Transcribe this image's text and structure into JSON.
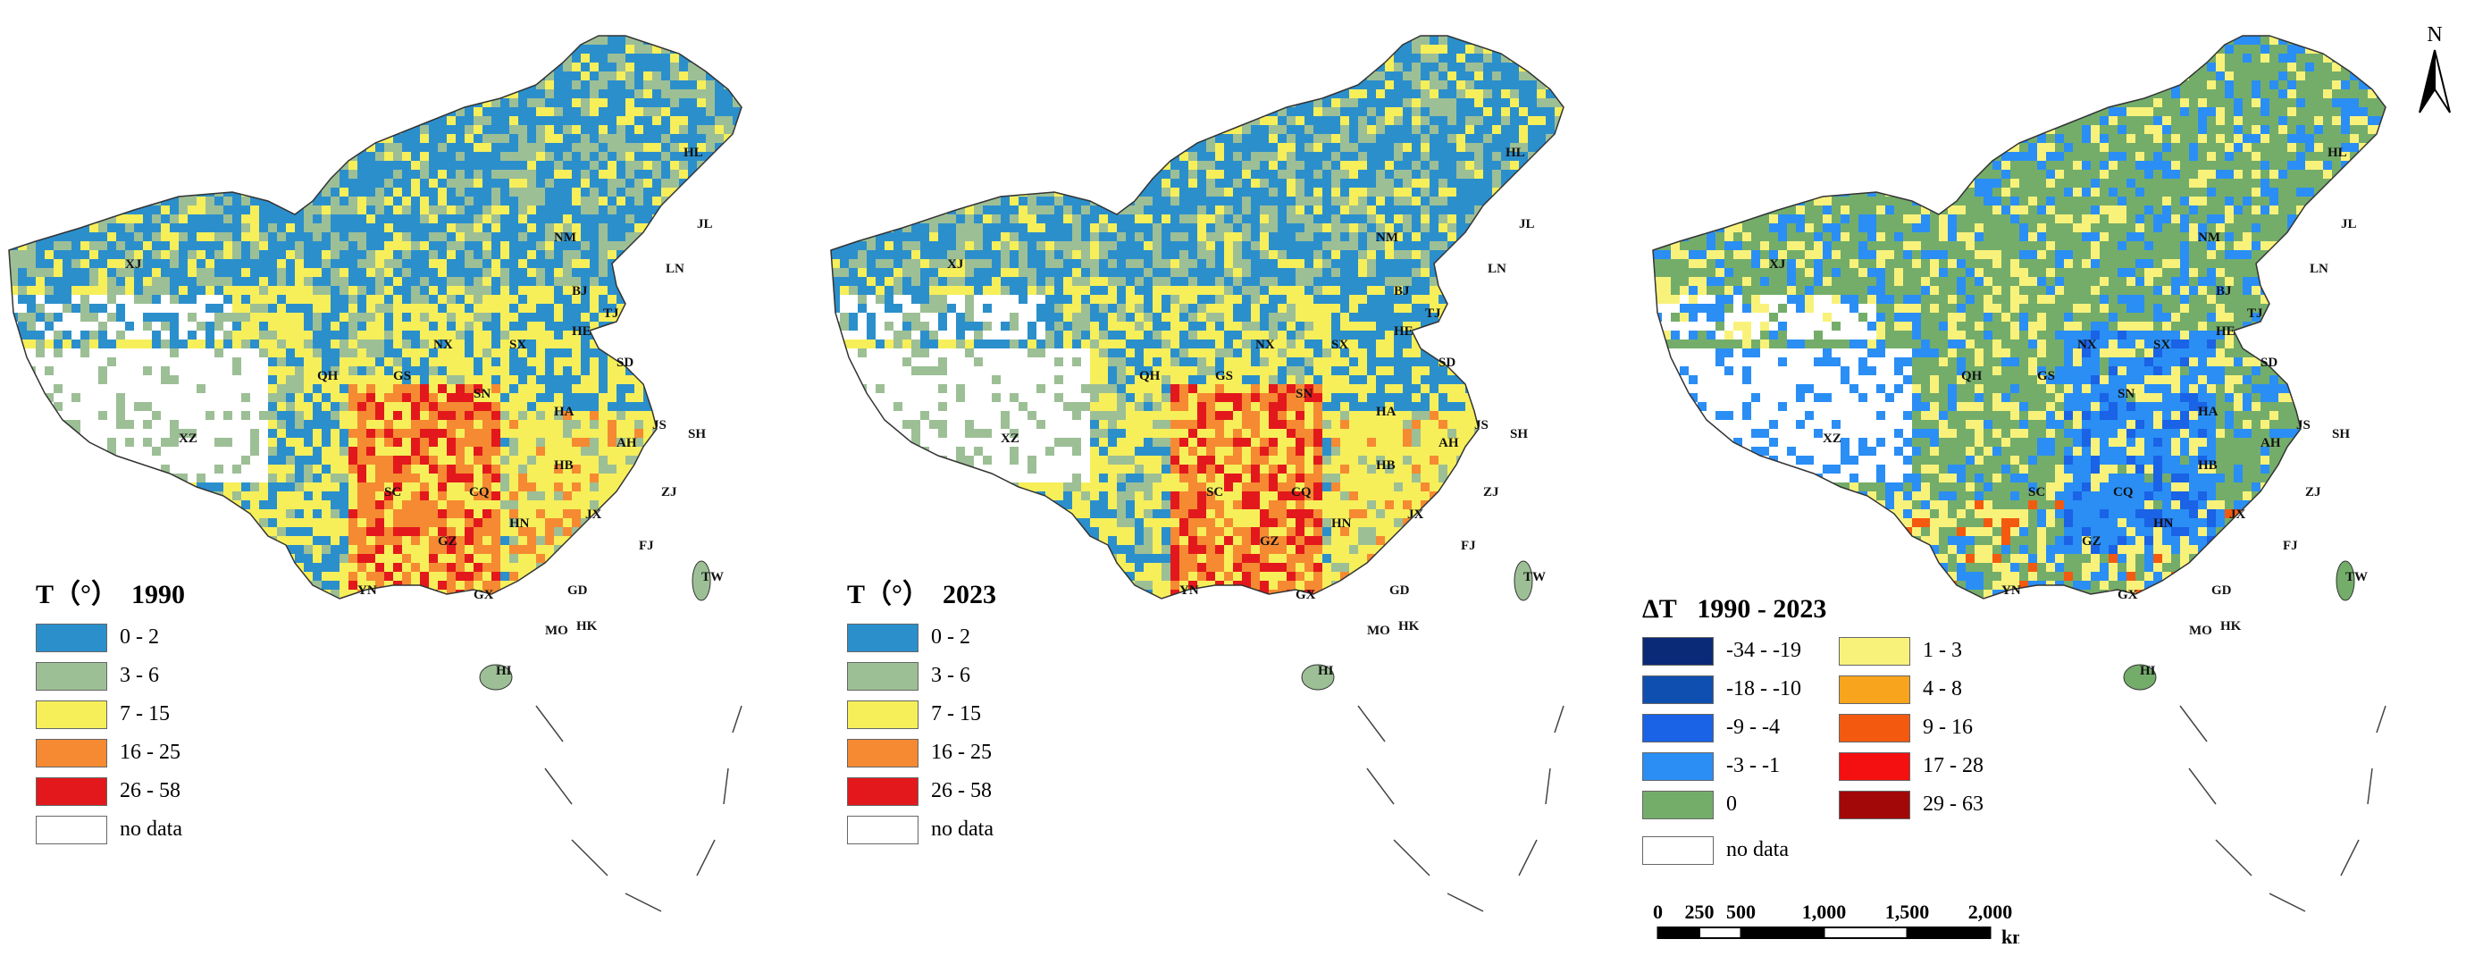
{
  "panels": [
    {
      "id": "1990",
      "legend_symbol": "T（°）",
      "legend_year": "1990",
      "classes": [
        {
          "label": "0 - 2",
          "color": "#2b8fcc"
        },
        {
          "label": "3 - 6",
          "color": "#9dbf96"
        },
        {
          "label": "7 - 15",
          "color": "#f6ef5a"
        },
        {
          "label": "16 - 25",
          "color": "#f58a32"
        },
        {
          "label": "26 - 58",
          "color": "#e3181c"
        },
        {
          "label": "no data",
          "color": "#ffffff"
        }
      ]
    },
    {
      "id": "2023",
      "legend_symbol": "T（°）",
      "legend_year": "2023",
      "classes": [
        {
          "label": "0 - 2",
          "color": "#2b8fcc"
        },
        {
          "label": "3 - 6",
          "color": "#9dbf96"
        },
        {
          "label": "7 - 15",
          "color": "#f6ef5a"
        },
        {
          "label": "16 - 25",
          "color": "#f58a32"
        },
        {
          "label": "26 - 58",
          "color": "#e3181c"
        },
        {
          "label": "no data",
          "color": "#ffffff"
        }
      ]
    }
  ],
  "diff_panel": {
    "legend_symbol": "ΔT",
    "legend_period": "1990 - 2023",
    "classes_left": [
      {
        "label": "-34 - -19",
        "color": "#0a2a78"
      },
      {
        "label": "-18 - -10",
        "color": "#0f4fb0"
      },
      {
        "label": "-9 - -4",
        "color": "#1a62e6"
      },
      {
        "label": "-3 - -1",
        "color": "#2a8ef5"
      },
      {
        "label": "0",
        "color": "#74ad6a"
      }
    ],
    "classes_right": [
      {
        "label": "1 - 3",
        "color": "#f9f27a"
      },
      {
        "label": "4 - 8",
        "color": "#f8a41c"
      },
      {
        "label": "9 - 16",
        "color": "#f35a10"
      },
      {
        "label": "17 - 28",
        "color": "#f40f10"
      },
      {
        "label": "29 - 63",
        "color": "#a30808"
      }
    ],
    "no_data_label": "no data",
    "no_data_color": "#ffffff"
  },
  "province_labels": [
    "HL",
    "JL",
    "LN",
    "NM",
    "XJ",
    "BJ",
    "TJ",
    "HE",
    "SX",
    "SD",
    "NX",
    "GS",
    "QH",
    "XZ",
    "SN",
    "HA",
    "JS",
    "SH",
    "AH",
    "HB",
    "SC",
    "CQ",
    "ZJ",
    "HN",
    "JX",
    "FJ",
    "GZ",
    "YN",
    "GX",
    "GD",
    "TW",
    "MO",
    "HK",
    "HI"
  ],
  "north_arrow": {
    "letter": "N"
  },
  "scale_bar": {
    "ticks": [
      "0",
      "250",
      "500",
      "1,000",
      "1,500",
      "2,000"
    ],
    "unit": "km"
  }
}
